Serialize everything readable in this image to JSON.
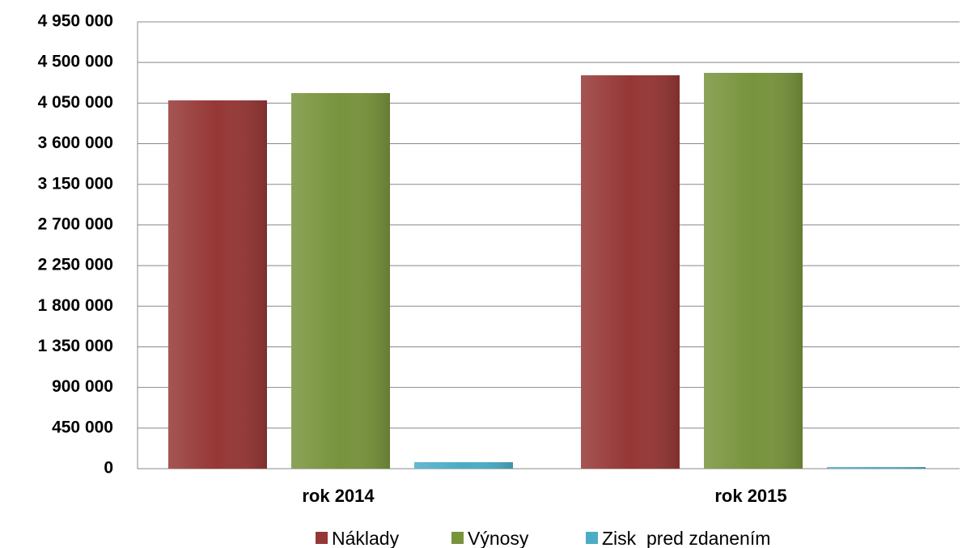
{
  "chart_data": {
    "type": "bar",
    "categories": [
      "rok 2014",
      "rok 2015"
    ],
    "series": [
      {
        "name": "Náklady",
        "color": "#953735",
        "values": [
          4080000,
          4358000
        ]
      },
      {
        "name": "Výnosy",
        "color": "#77933c",
        "values": [
          4161000,
          4385000
        ]
      },
      {
        "name": "Zisk  pred zdanením",
        "color": "#4bacc6",
        "values": [
          72000,
          18000
        ]
      }
    ],
    "ylim": [
      0,
      4950000
    ],
    "yticks": [
      0,
      {
        "value": 450000,
        "label": "450 000"
      },
      {
        "value": 900000,
        "label": "900 000"
      },
      {
        "value": 1350000,
        "label": "1 350 000"
      },
      {
        "value": 1800000,
        "label": "1 800 000"
      },
      {
        "value": 2250000,
        "label": "2 250 000"
      },
      {
        "value": 2700000,
        "label": "2 700 000"
      },
      {
        "value": 3150000,
        "label": "3 150 000"
      },
      {
        "value": 3600000,
        "label": "3 600 000"
      },
      {
        "value": 4050000,
        "label": "4 050 000"
      },
      {
        "value": 4500000,
        "label": "4 500 000"
      },
      {
        "value": 4950000,
        "label": "4 950 000"
      }
    ],
    "grid": true,
    "legend": "bottom"
  }
}
